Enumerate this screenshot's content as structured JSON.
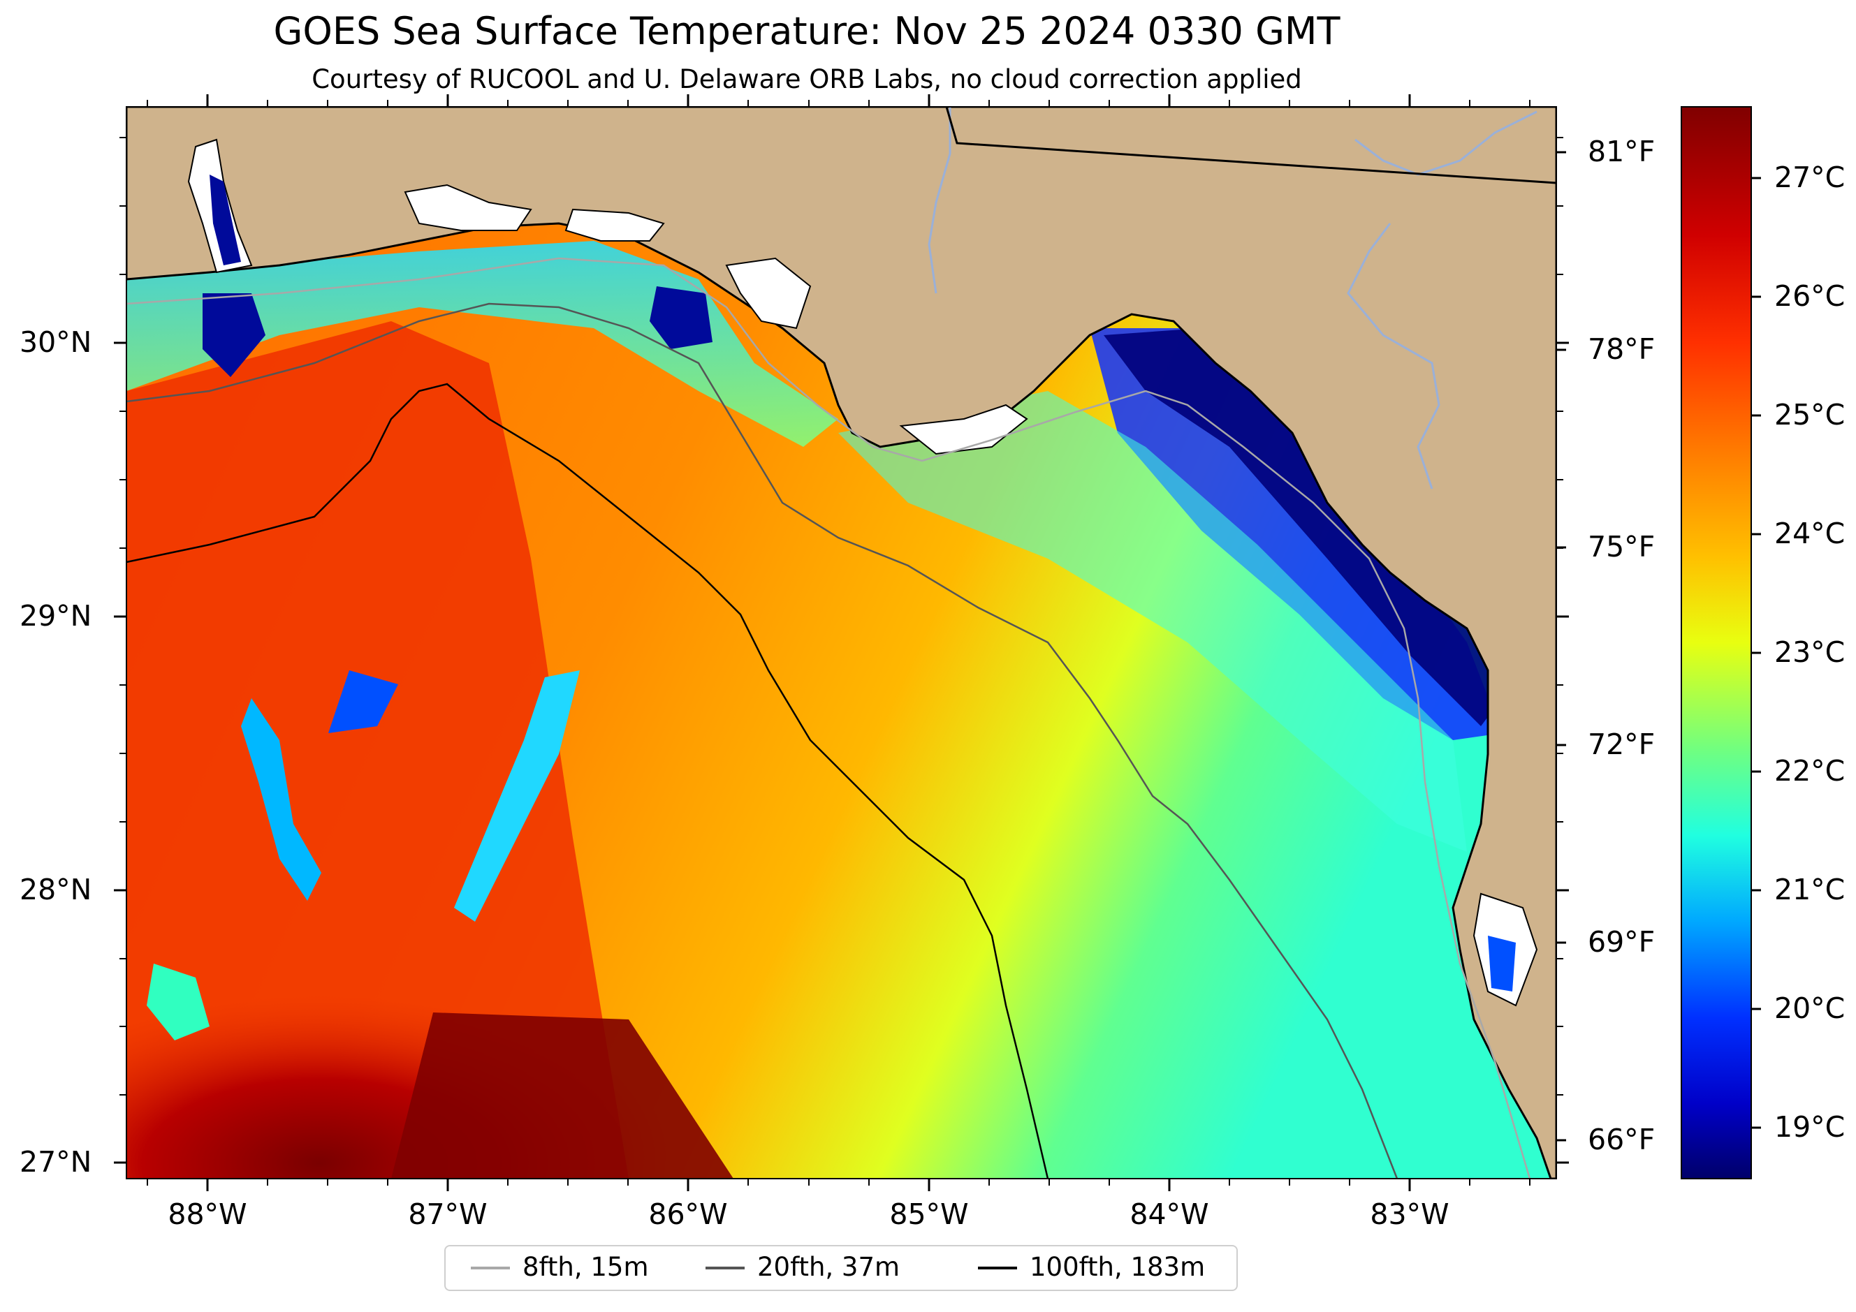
{
  "header": {
    "title": "GOES Sea Surface Temperature: Nov 25 2024 0330 GMT",
    "subtitle": "Courtesy of RUCOOL and U. Delaware ORB Labs, no cloud correction applied"
  },
  "axes": {
    "lat_labels": [
      "30°N",
      "29°N",
      "28°N",
      "27°N"
    ],
    "lon_labels": [
      "88°W",
      "87°W",
      "86°W",
      "85°W",
      "84°W",
      "83°W"
    ],
    "degf_labels": [
      "81°F",
      "78°F",
      "75°F",
      "72°F",
      "69°F",
      "66°F"
    ]
  },
  "colorbar": {
    "labels": [
      "27°C",
      "26°C",
      "25°C",
      "24°C",
      "23°C",
      "22°C",
      "21°C",
      "20°C",
      "19°C"
    ],
    "colors": [
      "#800000",
      "#e80000",
      "#ff6a00",
      "#ffb000",
      "#ffff00",
      "#a0ff60",
      "#30ffc0",
      "#00c0ff",
      "#0040ff",
      "#0000c8",
      "#00006a"
    ]
  },
  "legend": {
    "items": [
      {
        "label": "8fth, 15m",
        "color": "#a8a8a8"
      },
      {
        "label": "20fth, 37m",
        "color": "#555555"
      },
      {
        "label": "100fth, 183m",
        "color": "#000000"
      }
    ]
  },
  "map": {
    "land_color": "#cfb38c",
    "water_color_legend": "#ff8a00"
  }
}
